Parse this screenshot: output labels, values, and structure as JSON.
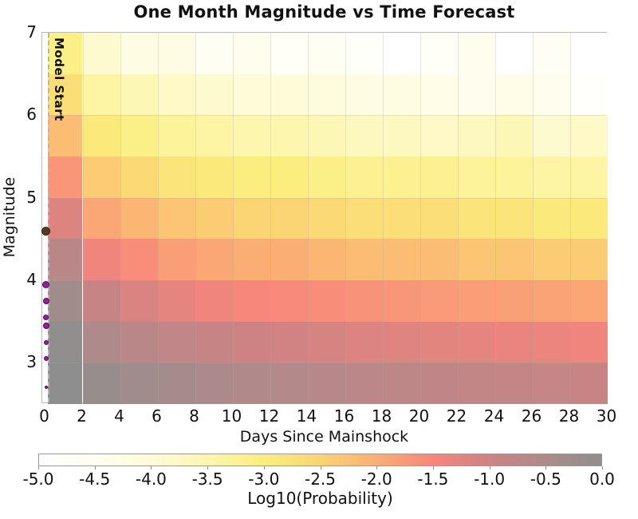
{
  "title": "One Month Magnitude vs Time Forecast",
  "chart_data": {
    "type": "heatmap",
    "title": "One Month Magnitude vs Time Forecast",
    "xlabel": "Days Since Mainshock",
    "ylabel": "Magnitude",
    "x_range_days": [
      0,
      30
    ],
    "y_range_magnitude": [
      2.5,
      7
    ],
    "x_ticks": [
      0,
      2,
      4,
      6,
      8,
      10,
      12,
      14,
      16,
      18,
      20,
      22,
      24,
      26,
      28,
      30
    ],
    "x_tick_labels": [
      "0",
      "2",
      "4",
      "6",
      "8",
      "10",
      "12",
      "14",
      "16",
      "18",
      "20",
      "22",
      "24",
      "26",
      "28",
      "30"
    ],
    "y_ticks": [
      7,
      6,
      5,
      4,
      3
    ],
    "y_tick_labels": [
      "7",
      "6",
      "5",
      "4",
      "3"
    ],
    "day_bin_edges": [
      0,
      2,
      4,
      6,
      8,
      10,
      12,
      14,
      16,
      18,
      20,
      22,
      24,
      26,
      28,
      30
    ],
    "magnitude_bin_edges": [
      2.5,
      3.0,
      3.5,
      4.0,
      4.5,
      5.0,
      5.5,
      6.0,
      6.5,
      7.0
    ],
    "magnitude_bins_top_to_bottom": [
      "6.5-7.0",
      "6.0-6.5",
      "5.5-6.0",
      "5.0-5.5",
      "4.5-5.0",
      "4.0-4.5",
      "3.5-4.0",
      "3.0-3.5",
      "2.5-3.0"
    ],
    "log10_probability_grid_top_to_bottom": [
      [
        -3.1,
        -3.9,
        -4.2,
        -4.2,
        -4.5,
        -4.4,
        -4.7,
        -4.5,
        -4.8,
        -5.0,
        -4.7,
        -4.4,
        -5.0,
        -4.6,
        -5.0
      ],
      [
        -2.7,
        -3.4,
        -3.6,
        -3.8,
        -3.9,
        -4.0,
        -4.0,
        -4.1,
        -4.2,
        -4.2,
        -4.3,
        -4.4,
        -4.3,
        -4.4,
        -4.9
      ],
      [
        -2.2,
        -2.9,
        -3.1,
        -3.3,
        -3.4,
        -3.5,
        -3.5,
        -3.6,
        -3.7,
        -3.7,
        -3.8,
        -3.7,
        -3.6,
        -3.9,
        -3.8
      ],
      [
        -1.7,
        -2.4,
        -2.6,
        -2.8,
        -2.9,
        -3.0,
        -3.0,
        -3.1,
        -3.2,
        -3.2,
        -3.2,
        -3.3,
        -3.3,
        -3.4,
        -3.4
      ],
      [
        -1.2,
        -1.9,
        -2.1,
        -2.3,
        -2.4,
        -2.5,
        -2.5,
        -2.6,
        -2.7,
        -2.7,
        -2.7,
        -2.8,
        -2.8,
        -2.9,
        -2.9
      ],
      [
        -0.7,
        -1.4,
        -1.6,
        -1.8,
        -1.9,
        -2.0,
        -2.0,
        -2.1,
        -2.2,
        -2.2,
        -2.2,
        -2.3,
        -2.3,
        -2.4,
        -2.4
      ],
      [
        -0.3,
        -0.9,
        -1.15,
        -1.3,
        -1.4,
        -1.5,
        -1.55,
        -1.6,
        -1.65,
        -1.7,
        -1.75,
        -1.8,
        -1.82,
        -1.86,
        -1.9
      ],
      [
        -0.05,
        -0.5,
        -0.7,
        -0.8,
        -0.9,
        -1.0,
        -1.05,
        -1.1,
        -1.17,
        -1.21,
        -1.26,
        -1.3,
        -1.33,
        -1.37,
        -1.4
      ],
      [
        0.0,
        -0.15,
        -0.28,
        -0.38,
        -0.47,
        -0.54,
        -0.6,
        -0.65,
        -0.71,
        -0.74,
        -0.79,
        -0.82,
        -0.85,
        -0.89,
        -0.92
      ]
    ],
    "model_start": {
      "label": "Model Start",
      "day": 0.15
    },
    "observed_events": [
      {
        "day": 0,
        "magnitude": 4.6,
        "fill": "#5C3A1E",
        "outline": "#31200F",
        "size": 11
      },
      {
        "day": 0,
        "magnitude": 3.95,
        "fill": "#9B1BA0",
        "outline": "#4A0E50",
        "size": 9
      },
      {
        "day": 0,
        "magnitude": 3.75,
        "fill": "#9B1BA0",
        "outline": "#4A0E50",
        "size": 8
      },
      {
        "day": 0,
        "magnitude": 3.55,
        "fill": "#9B1BA0",
        "outline": "#4A0E50",
        "size": 7
      },
      {
        "day": 0,
        "magnitude": 3.45,
        "fill": "#9B1BA0",
        "outline": "#4A0E50",
        "size": 8
      },
      {
        "day": 0,
        "magnitude": 3.25,
        "fill": "#9B1BA0",
        "outline": "#4A0E50",
        "size": 6
      },
      {
        "day": 0,
        "magnitude": 3.05,
        "fill": "#9B1BA0",
        "outline": "#4A0E50",
        "size": 6
      },
      {
        "day": 0,
        "magnitude": 2.7,
        "fill": "#9B1BA0",
        "outline": "#4A0E50",
        "size": 4
      }
    ],
    "colorbar": {
      "label": "Log10(Probability)",
      "min": -5.0,
      "max": 0.0,
      "ticks": [
        -5.0,
        -4.5,
        -4.0,
        -3.5,
        -3.0,
        -2.5,
        -2.0,
        -1.5,
        -1.0,
        -0.5,
        0.0
      ],
      "tick_labels": [
        "-5.0",
        "-4.5",
        "-4.0",
        "-3.5",
        "-3.0",
        "-2.5",
        "-2.0",
        "-1.5",
        "-1.0",
        "-0.5",
        "0.0"
      ],
      "color_stops": [
        {
          "value": -5.0,
          "color": "#FFFFFF"
        },
        {
          "value": -4.5,
          "color": "#FFFEF2"
        },
        {
          "value": -4.0,
          "color": "#FEFBD8"
        },
        {
          "value": -3.5,
          "color": "#FDF6AE"
        },
        {
          "value": -3.0,
          "color": "#FBEE7E"
        },
        {
          "value": -2.5,
          "color": "#FBD473"
        },
        {
          "value": -2.0,
          "color": "#FBAE74"
        },
        {
          "value": -1.5,
          "color": "#F7867B"
        },
        {
          "value": -1.0,
          "color": "#CD8384"
        },
        {
          "value": -0.5,
          "color": "#AE8A8B"
        },
        {
          "value": 0.0,
          "color": "#8E8E8E"
        }
      ]
    },
    "grid": true,
    "legend_position": "none"
  }
}
